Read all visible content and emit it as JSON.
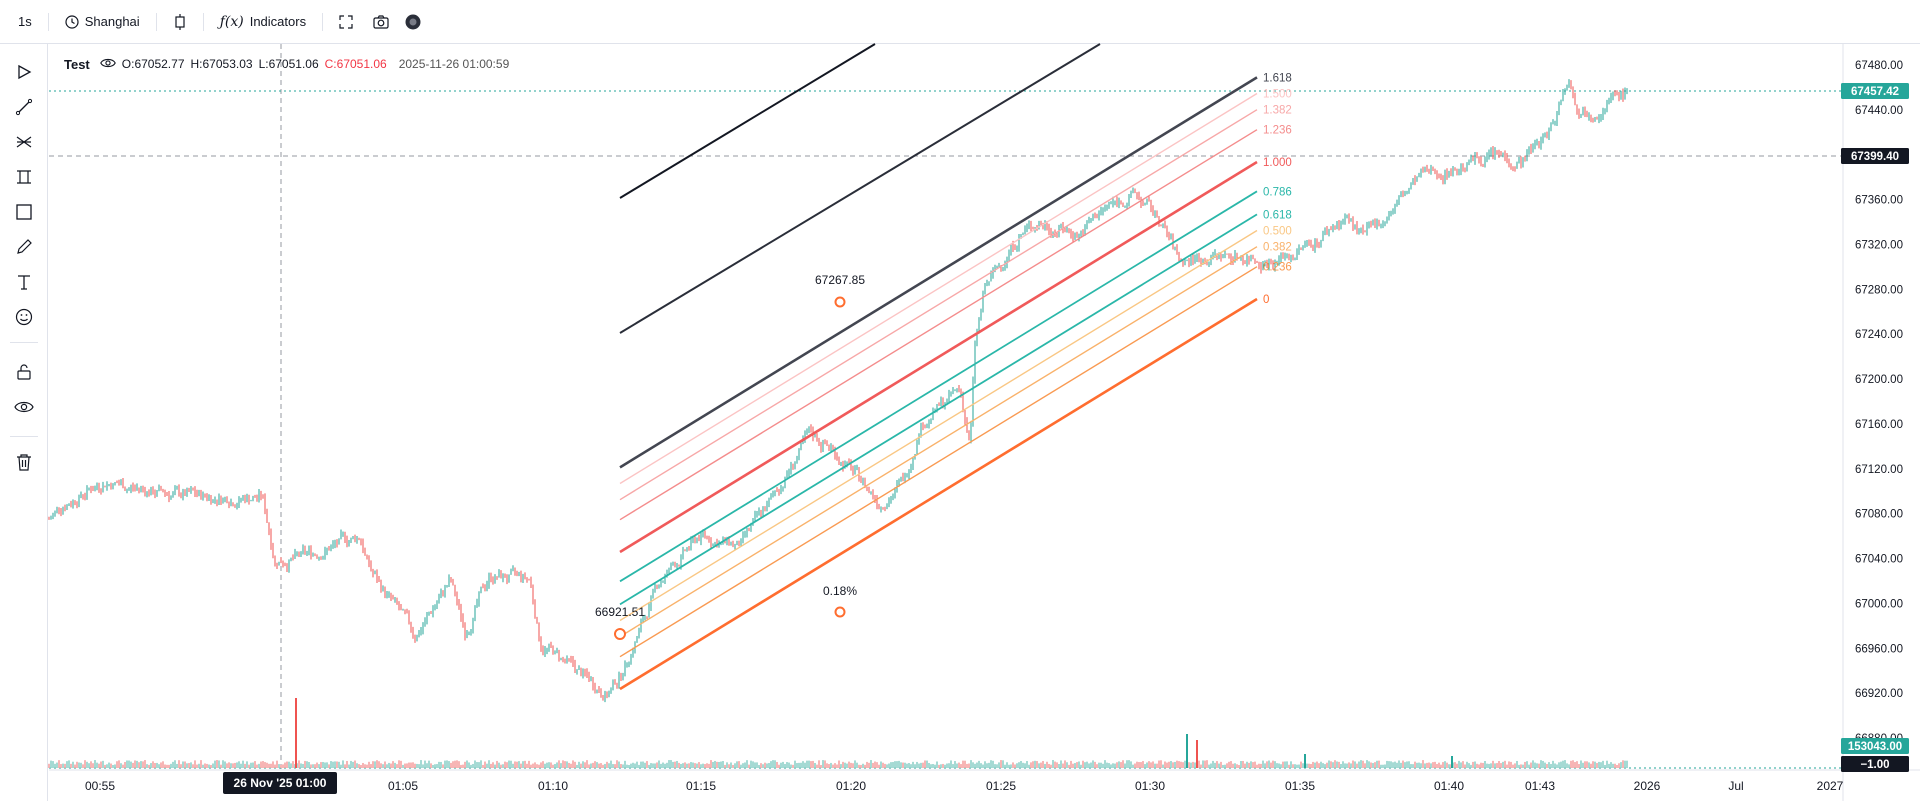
{
  "toolbar": {
    "interval": "1s",
    "timezone": "Shanghai",
    "indicators_label": "Indicators"
  },
  "legend": {
    "symbol": "Test",
    "open_label": "O:",
    "open": "67052.77",
    "high_label": "H:",
    "high": "67053.03",
    "low_label": "L:",
    "low": "67051.06",
    "close_label": "C:",
    "close": "67051.06",
    "timestamp": "2025-11-26 01:00:59"
  },
  "colors": {
    "up": "#26a69a",
    "down": "#ef5350",
    "last_price_bg": "#26a69a",
    "crosshair_bg": "#131722",
    "fib_outer": "#434651",
    "fib_trend": "#ff6d2f"
  },
  "price_axis": {
    "ticks": [
      "67480.00",
      "67440.00",
      "67400.00",
      "67360.00",
      "67320.00",
      "67280.00",
      "67240.00",
      "67200.00",
      "67160.00",
      "67120.00",
      "67080.00",
      "67040.00",
      "67000.00",
      "66960.00",
      "66920.00",
      "66880.00"
    ],
    "last_price": "67457.42",
    "crosshair_price": "67399.40",
    "volume_value": "153043.00",
    "lower_value": "−1.00"
  },
  "time_axis": {
    "ticks": [
      "00:55",
      "01:05",
      "01:10",
      "01:15",
      "01:20",
      "01:25",
      "01:30",
      "01:35",
      "01:40",
      "01:43",
      "2026",
      "Jul",
      "2027"
    ],
    "crosshair_label": "26 Nov '25  01:00"
  },
  "fib_levels": [
    {
      "label": "1.618",
      "value": 1.618,
      "color": "#434651"
    },
    {
      "label": "1.500",
      "value": 1.5,
      "color": "#fbc4c4"
    },
    {
      "label": "1.382",
      "value": 1.382,
      "color": "#f7a8a8"
    },
    {
      "label": "1.236",
      "value": 1.236,
      "color": "#f48c8c"
    },
    {
      "label": "1.000",
      "value": 1.0,
      "color": "#f05a5a"
    },
    {
      "label": "0.786",
      "value": 0.786,
      "color": "#2ab7a9"
    },
    {
      "label": "0.618",
      "value": 0.618,
      "color": "#2ab7a9"
    },
    {
      "label": "0.500",
      "value": 0.5,
      "color": "#f9c784"
    },
    {
      "label": "0.382",
      "value": 0.382,
      "color": "#f9b26b"
    },
    {
      "label": "0.236",
      "value": 0.236,
      "color": "#f99a52"
    },
    {
      "label": "0",
      "value": 0,
      "color": "#ff6d2f"
    }
  ],
  "annotations": {
    "point_high_price": "67267.85",
    "point_low_price": "66921.51",
    "percent_change": "0.18%"
  }
}
